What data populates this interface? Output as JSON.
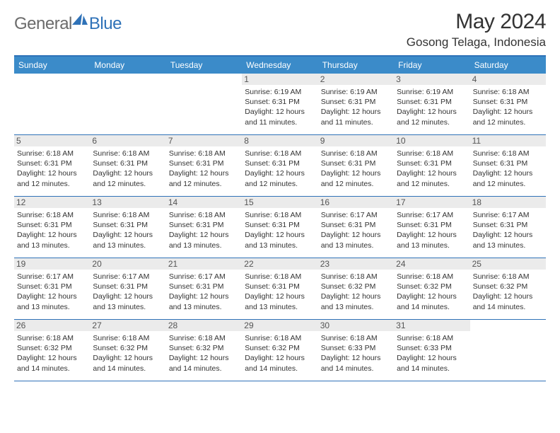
{
  "logo": {
    "general": "General",
    "blue": "Blue"
  },
  "title": "May 2024",
  "location": "Gosong Telaga, Indonesia",
  "colors": {
    "header_bg": "#3b8bc9",
    "border": "#2f72b8",
    "daynum_bg": "#ebebeb",
    "text": "#333333",
    "logo_gray": "#6b6b6b",
    "logo_blue": "#2f72b8",
    "page_bg": "#ffffff"
  },
  "day_names": [
    "Sunday",
    "Monday",
    "Tuesday",
    "Wednesday",
    "Thursday",
    "Friday",
    "Saturday"
  ],
  "weeks": [
    [
      {
        "n": "",
        "empty": true
      },
      {
        "n": "",
        "empty": true
      },
      {
        "n": "",
        "empty": true
      },
      {
        "n": "1",
        "sunrise": "6:19 AM",
        "sunset": "6:31 PM",
        "dh": "12",
        "dm": "11"
      },
      {
        "n": "2",
        "sunrise": "6:19 AM",
        "sunset": "6:31 PM",
        "dh": "12",
        "dm": "11"
      },
      {
        "n": "3",
        "sunrise": "6:19 AM",
        "sunset": "6:31 PM",
        "dh": "12",
        "dm": "12"
      },
      {
        "n": "4",
        "sunrise": "6:18 AM",
        "sunset": "6:31 PM",
        "dh": "12",
        "dm": "12"
      }
    ],
    [
      {
        "n": "5",
        "sunrise": "6:18 AM",
        "sunset": "6:31 PM",
        "dh": "12",
        "dm": "12"
      },
      {
        "n": "6",
        "sunrise": "6:18 AM",
        "sunset": "6:31 PM",
        "dh": "12",
        "dm": "12"
      },
      {
        "n": "7",
        "sunrise": "6:18 AM",
        "sunset": "6:31 PM",
        "dh": "12",
        "dm": "12"
      },
      {
        "n": "8",
        "sunrise": "6:18 AM",
        "sunset": "6:31 PM",
        "dh": "12",
        "dm": "12"
      },
      {
        "n": "9",
        "sunrise": "6:18 AM",
        "sunset": "6:31 PM",
        "dh": "12",
        "dm": "12"
      },
      {
        "n": "10",
        "sunrise": "6:18 AM",
        "sunset": "6:31 PM",
        "dh": "12",
        "dm": "12"
      },
      {
        "n": "11",
        "sunrise": "6:18 AM",
        "sunset": "6:31 PM",
        "dh": "12",
        "dm": "12"
      }
    ],
    [
      {
        "n": "12",
        "sunrise": "6:18 AM",
        "sunset": "6:31 PM",
        "dh": "12",
        "dm": "13"
      },
      {
        "n": "13",
        "sunrise": "6:18 AM",
        "sunset": "6:31 PM",
        "dh": "12",
        "dm": "13"
      },
      {
        "n": "14",
        "sunrise": "6:18 AM",
        "sunset": "6:31 PM",
        "dh": "12",
        "dm": "13"
      },
      {
        "n": "15",
        "sunrise": "6:18 AM",
        "sunset": "6:31 PM",
        "dh": "12",
        "dm": "13"
      },
      {
        "n": "16",
        "sunrise": "6:17 AM",
        "sunset": "6:31 PM",
        "dh": "12",
        "dm": "13"
      },
      {
        "n": "17",
        "sunrise": "6:17 AM",
        "sunset": "6:31 PM",
        "dh": "12",
        "dm": "13"
      },
      {
        "n": "18",
        "sunrise": "6:17 AM",
        "sunset": "6:31 PM",
        "dh": "12",
        "dm": "13"
      }
    ],
    [
      {
        "n": "19",
        "sunrise": "6:17 AM",
        "sunset": "6:31 PM",
        "dh": "12",
        "dm": "13"
      },
      {
        "n": "20",
        "sunrise": "6:17 AM",
        "sunset": "6:31 PM",
        "dh": "12",
        "dm": "13"
      },
      {
        "n": "21",
        "sunrise": "6:17 AM",
        "sunset": "6:31 PM",
        "dh": "12",
        "dm": "13"
      },
      {
        "n": "22",
        "sunrise": "6:18 AM",
        "sunset": "6:31 PM",
        "dh": "12",
        "dm": "13"
      },
      {
        "n": "23",
        "sunrise": "6:18 AM",
        "sunset": "6:32 PM",
        "dh": "12",
        "dm": "13"
      },
      {
        "n": "24",
        "sunrise": "6:18 AM",
        "sunset": "6:32 PM",
        "dh": "12",
        "dm": "14"
      },
      {
        "n": "25",
        "sunrise": "6:18 AM",
        "sunset": "6:32 PM",
        "dh": "12",
        "dm": "14"
      }
    ],
    [
      {
        "n": "26",
        "sunrise": "6:18 AM",
        "sunset": "6:32 PM",
        "dh": "12",
        "dm": "14"
      },
      {
        "n": "27",
        "sunrise": "6:18 AM",
        "sunset": "6:32 PM",
        "dh": "12",
        "dm": "14"
      },
      {
        "n": "28",
        "sunrise": "6:18 AM",
        "sunset": "6:32 PM",
        "dh": "12",
        "dm": "14"
      },
      {
        "n": "29",
        "sunrise": "6:18 AM",
        "sunset": "6:32 PM",
        "dh": "12",
        "dm": "14"
      },
      {
        "n": "30",
        "sunrise": "6:18 AM",
        "sunset": "6:33 PM",
        "dh": "12",
        "dm": "14"
      },
      {
        "n": "31",
        "sunrise": "6:18 AM",
        "sunset": "6:33 PM",
        "dh": "12",
        "dm": "14"
      },
      {
        "n": "",
        "empty": true
      }
    ]
  ],
  "labels": {
    "sunrise": "Sunrise:",
    "sunset": "Sunset:",
    "daylight_pre": "Daylight:",
    "hours_word": "hours",
    "and_word": "and",
    "minutes_word": "minutes."
  }
}
